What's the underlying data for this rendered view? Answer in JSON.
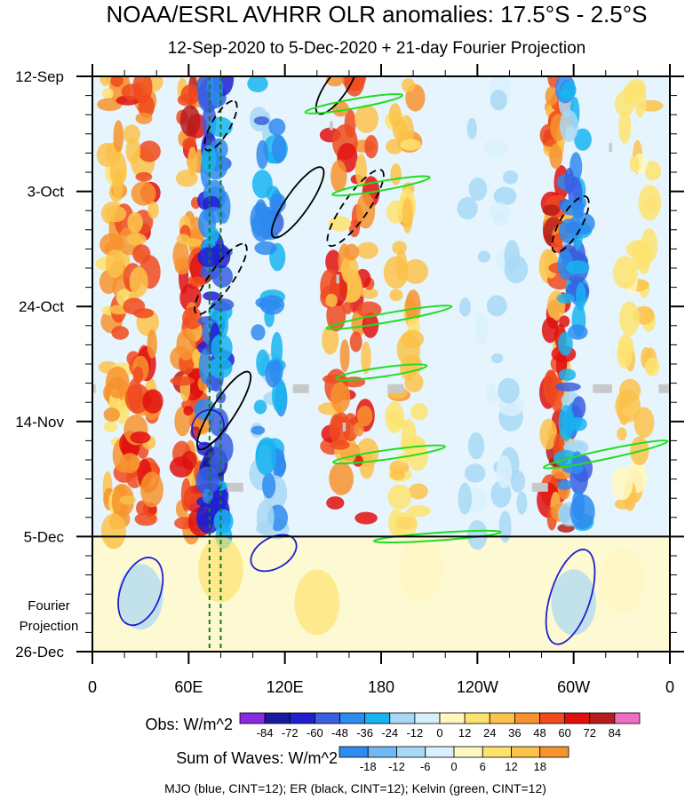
{
  "chart_data": {
    "type": "heatmap",
    "title": "NOAA/ESRL AVHRR OLR anomalies: 17.5°S - 2.5°S",
    "subtitle": "12-Sep-2020 to 5-Dec-2020 + 21-day Fourier Projection",
    "x_ticks": [
      {
        "label": "0",
        "lon": 0
      },
      {
        "label": "60E",
        "lon": 60
      },
      {
        "label": "120E",
        "lon": 120
      },
      {
        "label": "180",
        "lon": 180
      },
      {
        "label": "120W",
        "lon": 240
      },
      {
        "label": "60W",
        "lon": 300
      },
      {
        "label": "0",
        "lon": 360
      }
    ],
    "x_range": [
      0,
      360
    ],
    "y_ticks": [
      {
        "label": "12-Sep",
        "day": 0
      },
      {
        "label": "3-Oct",
        "day": 21
      },
      {
        "label": "24-Oct",
        "day": 42
      },
      {
        "label": "14-Nov",
        "day": 63
      },
      {
        "label": "5-Dec",
        "day": 84
      },
      {
        "label": "26-Dec",
        "day": 105
      }
    ],
    "y_range_days": [
      0,
      105
    ],
    "projection_start_day": 84,
    "projection_label": [
      "Fourier",
      "Projection"
    ],
    "reference_lons": [
      73,
      80
    ],
    "obs_legend": {
      "label": "Obs: W/m^2",
      "values": [
        "-84",
        "-72",
        "-60",
        "-48",
        "-36",
        "-24",
        "-12",
        "0",
        "12",
        "24",
        "36",
        "48",
        "60",
        "72",
        "84"
      ],
      "colors": [
        "#8a2be2",
        "#1a1a9e",
        "#1f1fd0",
        "#3a5fe0",
        "#2e8bef",
        "#17b4f0",
        "#a8d8f5",
        "#d8f0fc",
        "#fff8c0",
        "#fde36e",
        "#fcc24a",
        "#f7932f",
        "#f04a1e",
        "#e01010",
        "#b81c1c",
        "#f06fc3"
      ]
    },
    "waves_legend": {
      "label": "Sum of Waves: W/m^2",
      "values": [
        "-18",
        "-12",
        "-6",
        "0",
        "6",
        "12",
        "18"
      ],
      "colors": [
        "#2e8bef",
        "#6fb8f5",
        "#a8d8f5",
        "#d8f0fc",
        "#fff8c0",
        "#fde36e",
        "#fcc24a",
        "#f7932f"
      ]
    },
    "footer": "MJO (blue, CINT=12); ER (black, CINT=12); Kelvin (green, CINT=12)",
    "anomaly_bands": [
      {
        "lon": 14,
        "width": 6,
        "sign": 1,
        "amp": 0.6
      },
      {
        "lon": 30,
        "width": 8,
        "sign": 1,
        "amp": 0.8
      },
      {
        "lon": 62,
        "width": 7,
        "sign": 1,
        "amp": 0.9
      },
      {
        "lon": 76,
        "width": 6,
        "sign": -1,
        "amp": 0.9
      },
      {
        "lon": 110,
        "width": 8,
        "sign": -1,
        "amp": 0.6
      },
      {
        "lon": 160,
        "width": 14,
        "sign": 1,
        "amp": 0.8
      },
      {
        "lon": 196,
        "width": 8,
        "sign": 1,
        "amp": 0.5
      },
      {
        "lon": 250,
        "width": 18,
        "sign": -1,
        "amp": 0.25
      },
      {
        "lon": 290,
        "width": 6,
        "sign": 1,
        "amp": 0.9
      },
      {
        "lon": 300,
        "width": 6,
        "sign": -1,
        "amp": 0.7
      },
      {
        "lon": 340,
        "width": 10,
        "sign": 1,
        "amp": 0.35
      }
    ],
    "wave_contours": [
      {
        "type": "MJO",
        "color": "#1f1fd0",
        "lon": 30,
        "day": 94,
        "rx": 10,
        "ry": 2.6,
        "angle": 70,
        "dashed": false
      },
      {
        "type": "MJO",
        "color": "#1f1fd0",
        "lon": 298,
        "day": 95,
        "rx": 14,
        "ry": 2.6,
        "angle": 72,
        "dashed": false
      },
      {
        "type": "MJO",
        "color": "#1f1fd0",
        "lon": 72,
        "day": 64,
        "rx": 5,
        "ry": 2,
        "angle": 60,
        "dashed": false
      },
      {
        "type": "MJO",
        "color": "#1f1fd0",
        "lon": 113,
        "day": 87,
        "rx": 7,
        "ry": 2,
        "angle": 30,
        "dashed": false
      },
      {
        "type": "ER",
        "color": "#000000",
        "lon": 82,
        "day": 61,
        "rx": 13,
        "ry": 1.5,
        "angle": 57,
        "dashed": false
      },
      {
        "type": "ER",
        "color": "#000000",
        "lon": 128,
        "day": 23,
        "rx": 12,
        "ry": 1.5,
        "angle": 55,
        "dashed": false
      },
      {
        "type": "ER",
        "color": "#000000",
        "lon": 164,
        "day": 24,
        "rx": 13,
        "ry": 1.6,
        "angle": 55,
        "dashed": true
      },
      {
        "type": "ER",
        "color": "#000000",
        "lon": 80,
        "day": 37,
        "rx": 12,
        "ry": 1.5,
        "angle": 55,
        "dashed": true
      },
      {
        "type": "ER",
        "color": "#000000",
        "lon": 80,
        "day": 9,
        "rx": 8,
        "ry": 1.2,
        "angle": 60,
        "dashed": true
      },
      {
        "type": "ER",
        "color": "#000000",
        "lon": 298,
        "day": 27,
        "rx": 9,
        "ry": 1.4,
        "angle": 60,
        "dashed": true
      },
      {
        "type": "ER",
        "color": "#000000",
        "lon": 152,
        "day": 2,
        "rx": 9,
        "ry": 1.4,
        "angle": 55,
        "dashed": false
      },
      {
        "type": "Kelvin",
        "color": "#22dd22",
        "lon": 163,
        "day": 5,
        "rx": 14,
        "ry": 0.6,
        "angle": 10,
        "dashed": false
      },
      {
        "type": "Kelvin",
        "color": "#22dd22",
        "lon": 180,
        "day": 20,
        "rx": 14,
        "ry": 0.6,
        "angle": 10,
        "dashed": false
      },
      {
        "type": "Kelvin",
        "color": "#22dd22",
        "lon": 185,
        "day": 44,
        "rx": 18,
        "ry": 0.6,
        "angle": 10,
        "dashed": false
      },
      {
        "type": "Kelvin",
        "color": "#22dd22",
        "lon": 180,
        "day": 54,
        "rx": 13,
        "ry": 0.6,
        "angle": 8,
        "dashed": false
      },
      {
        "type": "Kelvin",
        "color": "#22dd22",
        "lon": 185,
        "day": 69,
        "rx": 16,
        "ry": 0.6,
        "angle": 8,
        "dashed": false
      },
      {
        "type": "Kelvin",
        "color": "#22dd22",
        "lon": 320,
        "day": 69,
        "rx": 18,
        "ry": 0.6,
        "angle": 12,
        "dashed": false
      },
      {
        "type": "Kelvin",
        "color": "#22dd22",
        "lon": 215,
        "day": 84,
        "rx": 18,
        "ry": 0.5,
        "angle": 4,
        "dashed": false
      }
    ],
    "missing_patches": [
      {
        "lon": 0,
        "day": 57,
        "w": 2
      },
      {
        "lon": 125,
        "day": 57,
        "w": 10
      },
      {
        "lon": 184,
        "day": 57,
        "w": 10
      },
      {
        "lon": 312,
        "day": 57,
        "w": 12
      },
      {
        "lon": 353,
        "day": 57,
        "w": 8
      },
      {
        "lon": 84,
        "day": 75,
        "w": 10
      },
      {
        "lon": 274,
        "day": 75,
        "w": 10
      },
      {
        "lon": 148,
        "day": 9,
        "w": 2
      },
      {
        "lon": 322,
        "day": 13,
        "w": 2
      },
      {
        "lon": 152,
        "day": 37,
        "w": 2
      },
      {
        "lon": 156,
        "day": 64,
        "w": 2
      }
    ]
  }
}
